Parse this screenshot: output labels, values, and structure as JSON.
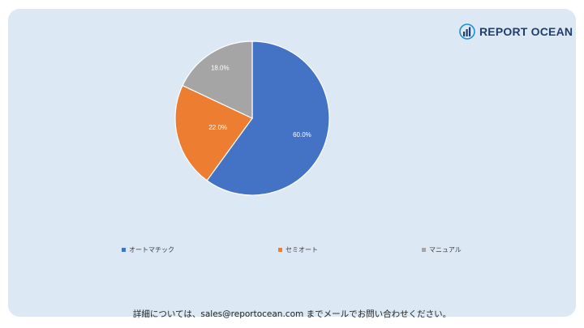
{
  "brand": {
    "name": "REPORT OCEAN"
  },
  "chart_data": {
    "type": "pie",
    "title": "",
    "categories": [
      "オートマチック",
      "セミオート",
      "マニュアル"
    ],
    "values": [
      60.0,
      22.0,
      18.0
    ],
    "data_labels": [
      "60.0%",
      "22.0%",
      "18.0%"
    ],
    "colors": [
      "#4472c4",
      "#ed7d31",
      "#a5a5a5"
    ],
    "legend": "bottom"
  },
  "footer": {
    "text": "詳細については、sales@reportocean.com までメールでお問い合わせください。"
  }
}
